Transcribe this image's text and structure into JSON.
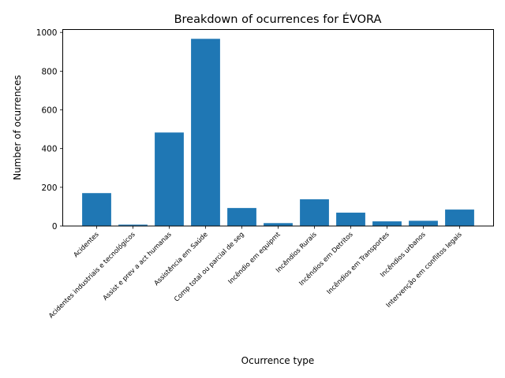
{
  "chart_data": {
    "type": "bar",
    "title": "Breakdown of ocurrences for ÉVORA",
    "xlabel": "Ocurrence type",
    "ylabel": "Number of ocurrences",
    "categories": [
      "Acidentes",
      "Acidentes industriais e tecnológicos",
      "Assist e prev a act humanas",
      "Assistência em Saúde",
      "Comp total ou parcial de seg",
      "Incêndio em equipmt",
      "Incêndios Rurais",
      "Incêndios em Detritos",
      "Incêndios em Transportes",
      "Incêndios urbanos",
      "Intervenção em conflitos legais"
    ],
    "values": [
      170,
      7,
      483,
      967,
      93,
      15,
      138,
      69,
      24,
      27,
      85
    ],
    "ylim": [
      0,
      1015
    ],
    "yticks": [
      0,
      200,
      400,
      600,
      800,
      1000
    ],
    "grid": false,
    "legend": "none",
    "bar_color": "#1f77b4"
  }
}
